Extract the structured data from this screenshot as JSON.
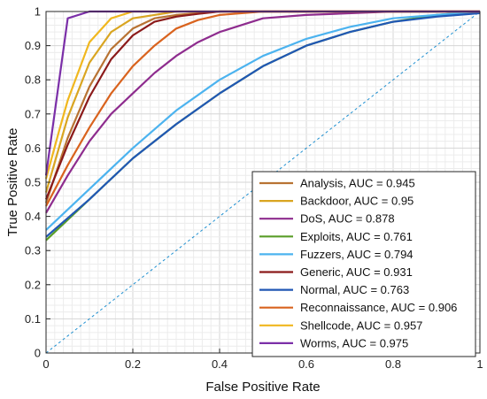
{
  "chart_data": {
    "type": "line",
    "xlabel": "False Positive Rate",
    "ylabel": "True Positive Rate",
    "xlim": [
      0,
      1
    ],
    "ylim": [
      0,
      1
    ],
    "x_ticks": [
      "0",
      "0.2",
      "0.4",
      "0.6",
      "0.8",
      "1"
    ],
    "y_ticks": [
      "0",
      "0.1",
      "0.2",
      "0.3",
      "0.4",
      "0.5",
      "0.6",
      "0.7",
      "0.8",
      "0.9",
      "1"
    ],
    "grid": true,
    "legend_position": "bottom-right",
    "reference_line": {
      "x": [
        0,
        1
      ],
      "y": [
        0,
        1
      ],
      "style": "dashed",
      "color": "#1f8fd0"
    },
    "series": [
      {
        "name": "Analysis, AUC = 0.945",
        "color": "#b87333",
        "x": [
          0,
          0.05,
          0.1,
          0.15,
          0.2,
          0.25,
          0.3,
          0.4,
          0.5,
          0.6,
          0.8,
          1
        ],
        "y": [
          0.44,
          0.63,
          0.78,
          0.89,
          0.95,
          0.98,
          0.99,
          1.0,
          1.0,
          1.0,
          1.0,
          1.0
        ]
      },
      {
        "name": "Backdoor, AUC = 0.95",
        "color": "#d9a521",
        "x": [
          0,
          0.05,
          0.1,
          0.15,
          0.2,
          0.25,
          0.3,
          0.4,
          0.5,
          0.6,
          0.8,
          1
        ],
        "y": [
          0.47,
          0.69,
          0.85,
          0.94,
          0.98,
          0.99,
          1.0,
          1.0,
          1.0,
          1.0,
          1.0,
          1.0
        ]
      },
      {
        "name": "DoS, AUC = 0.878",
        "color": "#8e2c8e",
        "x": [
          0,
          0.05,
          0.1,
          0.15,
          0.2,
          0.25,
          0.3,
          0.35,
          0.4,
          0.45,
          0.5,
          0.6,
          0.8,
          1
        ],
        "y": [
          0.41,
          0.52,
          0.62,
          0.7,
          0.76,
          0.82,
          0.87,
          0.91,
          0.94,
          0.96,
          0.98,
          0.99,
          1.0,
          1.0
        ]
      },
      {
        "name": "Exploits, AUC = 0.761",
        "color": "#5a9e28",
        "x": [
          0,
          0.1,
          0.2,
          0.3,
          0.4,
          0.5,
          0.6,
          0.7,
          0.8,
          0.9,
          1
        ],
        "y": [
          0.33,
          0.45,
          0.57,
          0.67,
          0.76,
          0.84,
          0.9,
          0.94,
          0.97,
          0.99,
          1.0
        ]
      },
      {
        "name": "Fuzzers, AUC = 0.794",
        "color": "#4cb3ef",
        "x": [
          0,
          0.1,
          0.2,
          0.3,
          0.4,
          0.5,
          0.6,
          0.7,
          0.8,
          0.9,
          1
        ],
        "y": [
          0.36,
          0.48,
          0.6,
          0.71,
          0.8,
          0.87,
          0.92,
          0.955,
          0.98,
          0.99,
          1.0
        ]
      },
      {
        "name": "Generic, AUC = 0.931",
        "color": "#8b1a1a",
        "x": [
          0,
          0.05,
          0.1,
          0.15,
          0.2,
          0.25,
          0.3,
          0.35,
          0.4,
          0.5,
          0.6,
          0.8,
          1
        ],
        "y": [
          0.45,
          0.61,
          0.75,
          0.86,
          0.93,
          0.97,
          0.985,
          0.993,
          1.0,
          1.0,
          1.0,
          1.0,
          1.0
        ]
      },
      {
        "name": "Normal, AUC = 0.763",
        "color": "#2057b4",
        "x": [
          0,
          0.1,
          0.2,
          0.3,
          0.4,
          0.5,
          0.6,
          0.7,
          0.8,
          0.9,
          1
        ],
        "y": [
          0.34,
          0.45,
          0.57,
          0.67,
          0.76,
          0.84,
          0.9,
          0.94,
          0.97,
          0.985,
          0.995
        ]
      },
      {
        "name": "Reconnaissance, AUC = 0.906",
        "color": "#d9631e",
        "x": [
          0,
          0.05,
          0.1,
          0.15,
          0.2,
          0.25,
          0.3,
          0.35,
          0.4,
          0.5,
          0.6,
          0.8,
          1
        ],
        "y": [
          0.43,
          0.55,
          0.66,
          0.76,
          0.84,
          0.9,
          0.95,
          0.975,
          0.99,
          1.0,
          1.0,
          1.0,
          1.0
        ]
      },
      {
        "name": "Shellcode, AUC = 0.957",
        "color": "#f0b71e",
        "x": [
          0,
          0.03,
          0.05,
          0.1,
          0.15,
          0.2,
          0.3,
          0.4,
          0.6,
          0.8,
          1
        ],
        "y": [
          0.51,
          0.65,
          0.74,
          0.91,
          0.98,
          1.0,
          1.0,
          1.0,
          1.0,
          1.0,
          1.0
        ]
      },
      {
        "name": "Worms, AUC = 0.975",
        "color": "#7b2fa8",
        "x": [
          0,
          0.05,
          0.1,
          0.2,
          0.4,
          0.6,
          0.8,
          1
        ],
        "y": [
          0.52,
          0.98,
          1.0,
          1.0,
          1.0,
          1.0,
          1.0,
          1.0
        ]
      }
    ]
  }
}
